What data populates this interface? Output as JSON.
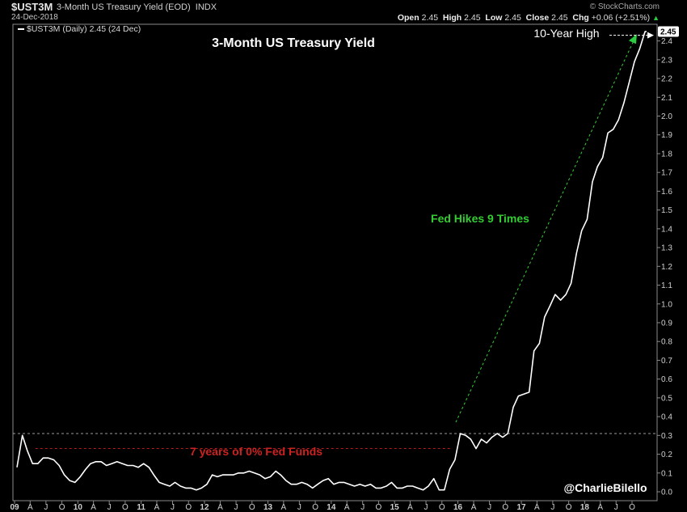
{
  "header": {
    "ticker": "$UST3M",
    "description": "3-Month US Treasury Yield (EOD)",
    "exchange": "INDX",
    "date": "24-Dec-2018",
    "brand": "© StockCharts.com",
    "ohlc": {
      "open_label": "Open",
      "open": "2.45",
      "high_label": "High",
      "high": "2.45",
      "low_label": "Low",
      "low": "2.45",
      "close_label": "Close",
      "close": "2.45",
      "chg_label": "Chg",
      "chg": "+0.06 (+2.51%)"
    },
    "legend": "$UST3M (Daily) 2.45 (24 Dec)"
  },
  "chart_data": {
    "type": "line",
    "title": "3-Month US Treasury Yield",
    "series": [
      {
        "name": "$UST3M (Daily)",
        "x": [
          "2009-01",
          "2009-02",
          "2009-03",
          "2009-04",
          "2009-05",
          "2009-06",
          "2009-07",
          "2009-08",
          "2009-09",
          "2009-10",
          "2009-11",
          "2009-12",
          "2010-01",
          "2010-02",
          "2010-03",
          "2010-04",
          "2010-05",
          "2010-06",
          "2010-07",
          "2010-08",
          "2010-09",
          "2010-10",
          "2010-11",
          "2010-12",
          "2011-01",
          "2011-02",
          "2011-03",
          "2011-04",
          "2011-05",
          "2011-06",
          "2011-07",
          "2011-08",
          "2011-09",
          "2011-10",
          "2011-11",
          "2011-12",
          "2012-01",
          "2012-02",
          "2012-03",
          "2012-04",
          "2012-05",
          "2012-06",
          "2012-07",
          "2012-08",
          "2012-09",
          "2012-10",
          "2012-11",
          "2012-12",
          "2013-01",
          "2013-02",
          "2013-03",
          "2013-04",
          "2013-05",
          "2013-06",
          "2013-07",
          "2013-08",
          "2013-09",
          "2013-10",
          "2013-11",
          "2013-12",
          "2014-01",
          "2014-02",
          "2014-03",
          "2014-04",
          "2014-05",
          "2014-06",
          "2014-07",
          "2014-08",
          "2014-09",
          "2014-10",
          "2014-11",
          "2014-12",
          "2015-01",
          "2015-02",
          "2015-03",
          "2015-04",
          "2015-05",
          "2015-06",
          "2015-07",
          "2015-08",
          "2015-09",
          "2015-10",
          "2015-11",
          "2015-12",
          "2016-01",
          "2016-02",
          "2016-03",
          "2016-04",
          "2016-05",
          "2016-06",
          "2016-07",
          "2016-08",
          "2016-09",
          "2016-10",
          "2016-11",
          "2016-12",
          "2017-01",
          "2017-02",
          "2017-03",
          "2017-04",
          "2017-05",
          "2017-06",
          "2017-07",
          "2017-08",
          "2017-09",
          "2017-10",
          "2017-11",
          "2017-12",
          "2018-01",
          "2018-02",
          "2018-03",
          "2018-04",
          "2018-05",
          "2018-06",
          "2018-07",
          "2018-08",
          "2018-09",
          "2018-10",
          "2018-11",
          "2018-12"
        ],
        "values": [
          0.13,
          0.3,
          0.22,
          0.15,
          0.15,
          0.18,
          0.18,
          0.17,
          0.14,
          0.09,
          0.06,
          0.05,
          0.08,
          0.12,
          0.15,
          0.16,
          0.16,
          0.14,
          0.15,
          0.16,
          0.15,
          0.14,
          0.14,
          0.13,
          0.15,
          0.13,
          0.09,
          0.05,
          0.04,
          0.03,
          0.05,
          0.03,
          0.02,
          0.02,
          0.01,
          0.02,
          0.04,
          0.09,
          0.08,
          0.09,
          0.09,
          0.09,
          0.1,
          0.1,
          0.11,
          0.1,
          0.09,
          0.07,
          0.08,
          0.11,
          0.09,
          0.06,
          0.04,
          0.04,
          0.05,
          0.04,
          0.02,
          0.04,
          0.06,
          0.07,
          0.04,
          0.05,
          0.05,
          0.04,
          0.03,
          0.04,
          0.03,
          0.04,
          0.02,
          0.02,
          0.03,
          0.05,
          0.02,
          0.02,
          0.03,
          0.03,
          0.02,
          0.01,
          0.03,
          0.07,
          0.01,
          0.01,
          0.12,
          0.17,
          0.31,
          0.3,
          0.28,
          0.23,
          0.28,
          0.26,
          0.29,
          0.31,
          0.29,
          0.31,
          0.45,
          0.51,
          0.52,
          0.53,
          0.75,
          0.79,
          0.93,
          0.99,
          1.05,
          1.02,
          1.05,
          1.11,
          1.27,
          1.39,
          1.45,
          1.65,
          1.73,
          1.78,
          1.91,
          1.93,
          1.98,
          2.07,
          2.18,
          2.29,
          2.36,
          2.45
        ]
      }
    ],
    "x_ticks": [
      "09",
      "A",
      "J",
      "O",
      "10",
      "A",
      "J",
      "O",
      "11",
      "A",
      "J",
      "O",
      "12",
      "A",
      "J",
      "O",
      "13",
      "A",
      "J",
      "O",
      "14",
      "A",
      "J",
      "O",
      "15",
      "A",
      "J",
      "O",
      "16",
      "A",
      "J",
      "O",
      "17",
      "A",
      "J",
      "O",
      "18",
      "A",
      "J",
      "O"
    ],
    "y_ticks": [
      "0.0",
      "0.1",
      "0.2",
      "0.3",
      "0.4",
      "0.5",
      "0.6",
      "0.7",
      "0.8",
      "0.9",
      "1.0",
      "1.1",
      "1.2",
      "1.3",
      "1.4",
      "1.5",
      "1.6",
      "1.7",
      "1.8",
      "1.9",
      "2.0",
      "2.1",
      "2.2",
      "2.3",
      "2.4"
    ],
    "ylim": [
      0,
      2.45
    ],
    "last_value_label": "2.45",
    "annotations": {
      "ten_year_high": "10-Year High",
      "fed_hikes": "Fed Hikes 9 Times",
      "zero_fed_funds": "7 years of 0% Fed Funds",
      "credit": "@CharlieBilello"
    },
    "colors": {
      "line": "#ffffff",
      "fed_hikes": "#33cc33",
      "zero_fed_funds": "#cc2222",
      "marker": "#2ecc40"
    },
    "grid": false
  }
}
